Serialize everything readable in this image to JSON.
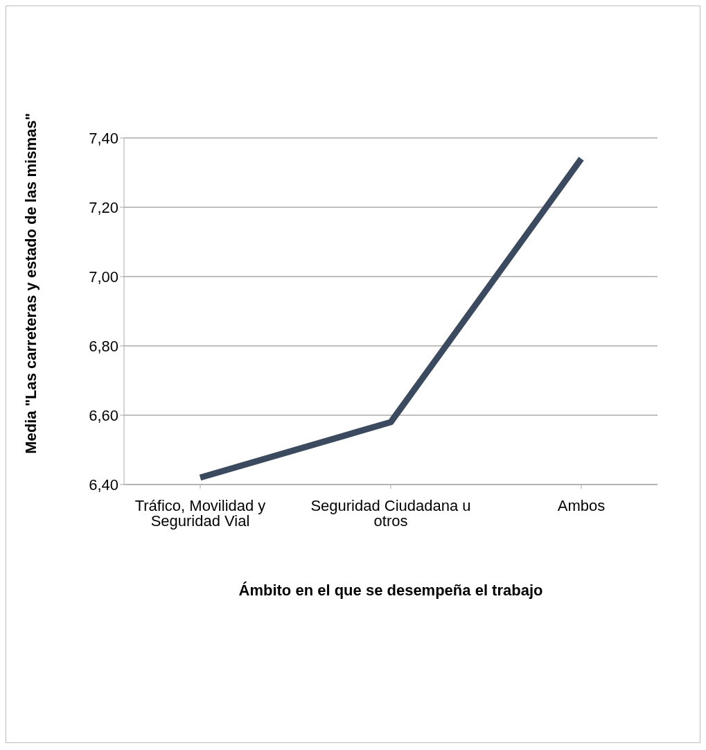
{
  "chart_data": {
    "type": "line",
    "xlabel": "Ámbito en el que se desempeña el trabajo",
    "ylabel": "Media \"Las carreteras y estado de las mismas\"",
    "categories": [
      "Tráfico, Movilidad y Seguridad Vial",
      "Seguridad Ciudadana u otros",
      "Ambos"
    ],
    "series": [
      {
        "color": "#3b4a5e",
        "values": [
          6.42,
          6.58,
          7.34
        ]
      }
    ],
    "ylim": [
      6.4,
      7.4
    ],
    "yticks": [
      {
        "value": 6.4,
        "label": "6,40"
      },
      {
        "value": 6.6,
        "label": "6,60"
      },
      {
        "value": 6.8,
        "label": "6,80"
      },
      {
        "value": 7.0,
        "label": "7,00"
      },
      {
        "value": 7.2,
        "label": "7,20"
      },
      {
        "value": 7.4,
        "label": "7,40"
      }
    ],
    "grid": "y",
    "legend": false,
    "marker": "none",
    "line_style": "solid"
  }
}
